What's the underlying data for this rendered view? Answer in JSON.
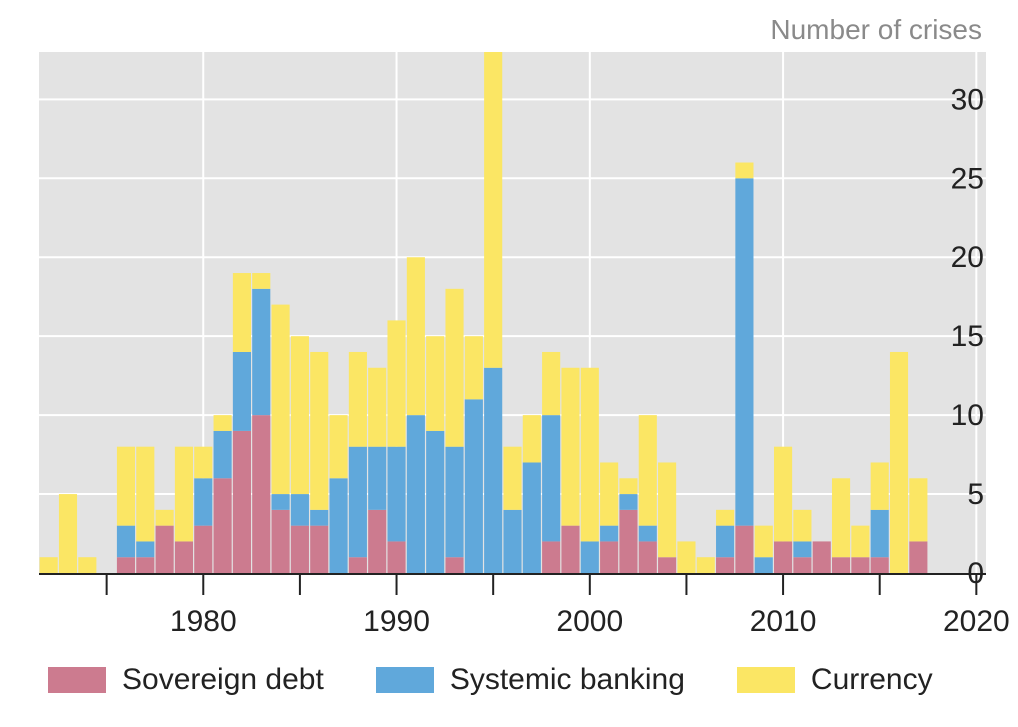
{
  "chart_data": {
    "type": "bar",
    "stacked": true,
    "ylabel": "Number of crises",
    "ylim": [
      0,
      33
    ],
    "yticks": [
      0,
      5,
      10,
      15,
      20,
      25,
      30
    ],
    "xlim": [
      1971.5,
      2020.5
    ],
    "xticks": [
      1980,
      1990,
      2000,
      2010,
      2020
    ],
    "grid": true,
    "legend_position": "bottom",
    "x": [
      1972,
      1973,
      1974,
      1975,
      1976,
      1977,
      1978,
      1979,
      1980,
      1981,
      1982,
      1983,
      1984,
      1985,
      1986,
      1987,
      1988,
      1989,
      1990,
      1991,
      1992,
      1993,
      1994,
      1995,
      1996,
      1997,
      1998,
      1999,
      2000,
      2001,
      2002,
      2003,
      2004,
      2005,
      2006,
      2007,
      2008,
      2009,
      2010,
      2011,
      2012,
      2013,
      2014,
      2015,
      2016,
      2017,
      2018,
      2019,
      2020
    ],
    "series": [
      {
        "name": "Sovereign debt",
        "color": "#cc7b8f",
        "values": [
          0,
          0,
          0,
          0,
          1,
          1,
          3,
          2,
          3,
          6,
          9,
          10,
          4,
          3,
          3,
          0,
          1,
          4,
          2,
          0,
          0,
          1,
          0,
          0,
          0,
          0,
          2,
          3,
          0,
          2,
          4,
          2,
          1,
          0,
          0,
          1,
          3,
          0,
          2,
          1,
          2,
          1,
          1,
          1,
          0,
          2,
          0,
          0,
          0
        ]
      },
      {
        "name": "Systemic banking",
        "color": "#60a8db",
        "values": [
          0,
          0,
          0,
          0,
          2,
          1,
          0,
          0,
          3,
          3,
          5,
          8,
          1,
          2,
          1,
          6,
          7,
          4,
          6,
          10,
          9,
          7,
          11,
          13,
          4,
          7,
          8,
          0,
          2,
          1,
          1,
          1,
          0,
          0,
          0,
          2,
          22,
          1,
          0,
          1,
          0,
          0,
          0,
          3,
          0,
          0,
          0,
          0,
          0
        ]
      },
      {
        "name": "Currency",
        "color": "#fbe664",
        "values": [
          1,
          5,
          1,
          0,
          5,
          6,
          1,
          6,
          2,
          1,
          5,
          1,
          12,
          10,
          10,
          4,
          6,
          5,
          8,
          10,
          6,
          10,
          4,
          20,
          4,
          3,
          4,
          10,
          11,
          4,
          1,
          7,
          6,
          2,
          1,
          1,
          1,
          2,
          6,
          2,
          0,
          5,
          2,
          3,
          14,
          4,
          0,
          0,
          0
        ]
      }
    ]
  }
}
